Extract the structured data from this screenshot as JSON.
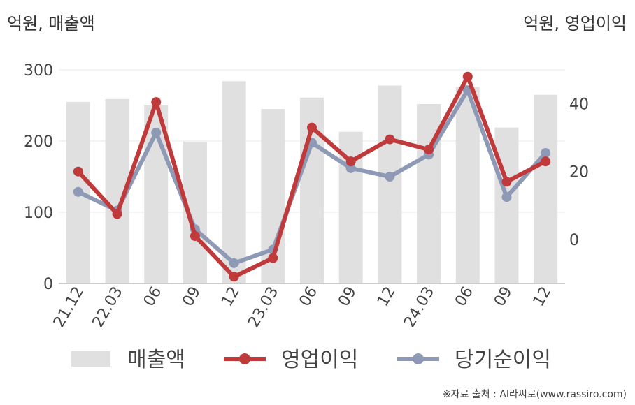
{
  "units": {
    "left": "억원, 매출액",
    "right": "억원, 영업이익"
  },
  "source": "※자료 출처 : AI라씨로(www.rassiro.com)",
  "chart_data": {
    "type": "bar",
    "categories": [
      "21.12",
      "22.03",
      "06",
      "09",
      "12",
      "23.03",
      "06",
      "09",
      "12",
      "24.03",
      "06",
      "09",
      "12"
    ],
    "y_left": {
      "ticks": [
        "0",
        "100",
        "200",
        "300"
      ],
      "ylim": [
        0,
        300
      ]
    },
    "y_right": {
      "ticks": [
        "0",
        "20",
        "40"
      ],
      "ylim": [
        -13,
        50
      ]
    },
    "grid": true,
    "legend_position": "bottom",
    "series": [
      {
        "name": "매출액",
        "type": "bar",
        "axis": "left",
        "color": "#e0e0e0",
        "values": [
          255,
          259,
          251,
          199,
          284,
          245,
          261,
          213,
          278,
          252,
          276,
          219,
          265
        ]
      },
      {
        "name": "영업이익",
        "type": "line",
        "axis": "right",
        "color": "#c0393b",
        "values": [
          20,
          7.5,
          40.5,
          1,
          -11,
          -5.5,
          33,
          23,
          29.5,
          26.5,
          48,
          17,
          23
        ]
      },
      {
        "name": "당기순이익",
        "type": "line",
        "axis": "right",
        "color": "#8e9ab5",
        "values": [
          14,
          8.5,
          31.5,
          3,
          -7,
          -3,
          28.5,
          21,
          18.5,
          25,
          44,
          12.5,
          25.5
        ]
      }
    ]
  }
}
